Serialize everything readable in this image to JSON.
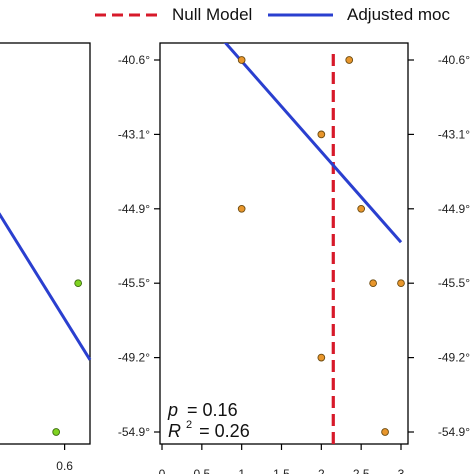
{
  "colors": {
    "null_line": "#d7192a",
    "fit_line": "#2a3fcf",
    "point_fill_right": "#e8962c",
    "point_fill_left": "#7fd321",
    "point_stroke": "#6b4a10",
    "axis": "#000000"
  },
  "legend": {
    "null_label": "Null Model",
    "fit_label": "Adjusted moc"
  },
  "chart_data": [
    {
      "type": "scatter",
      "panel": "left (partially visible)",
      "x_ticks": [
        "0.6"
      ],
      "y_ticks": [
        "-40.6°",
        "-43.1°",
        "-44.9°",
        "-45.5°",
        "-49.2°",
        "-54.9°"
      ],
      "xlim": [
        0.1,
        0.75
      ],
      "points": [
        {
          "x": 0.68,
          "y": "-45.5°"
        },
        {
          "x": 0.55,
          "y": "-54.9°"
        }
      ],
      "fit_line": {
        "x": [
          0.1,
          0.75
        ],
        "y_rank": [
          3.35,
          0.97
        ]
      }
    },
    {
      "type": "scatter",
      "panel": "right",
      "x_ticks": [
        "0",
        "0.5",
        "1",
        "1.5",
        "2",
        "2.5",
        "3"
      ],
      "y_ticks": [
        "-40.6°",
        "-43.1°",
        "-44.9°",
        "-45.5°",
        "-49.2°",
        "-54.9°"
      ],
      "xlim": [
        0,
        3
      ],
      "points": [
        {
          "x": 1,
          "y": "-40.6°"
        },
        {
          "x": 2.35,
          "y": "-40.6°"
        },
        {
          "x": 2,
          "y": "-43.1°"
        },
        {
          "x": 1,
          "y": "-44.9°"
        },
        {
          "x": 2.5,
          "y": "-44.9°"
        },
        {
          "x": 2.65,
          "y": "-45.5°"
        },
        {
          "x": 3,
          "y": "-45.5°"
        },
        {
          "x": 2,
          "y": "-49.2°"
        },
        {
          "x": 2.8,
          "y": "-54.9°"
        }
      ],
      "null_model_x": 2.15,
      "fit_line": {
        "x": [
          0,
          3
        ],
        "y_rank": [
          6.2,
          2.55
        ]
      },
      "stats": {
        "p_label": "p",
        "p_value": "= 0.16",
        "r2_label": "R",
        "r2_exp": "2",
        "r2_value": "= 0.26"
      }
    }
  ]
}
